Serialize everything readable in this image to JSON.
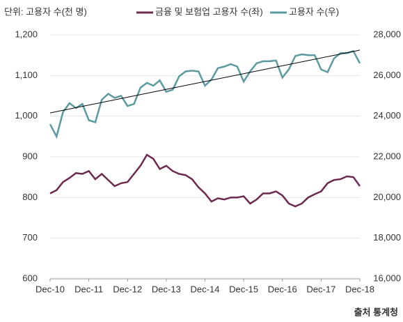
{
  "chart_data": {
    "type": "line",
    "unit_label": "단위: 고용자 수(천 명)",
    "source": "출처 통계청",
    "categories": [
      "Dec-10",
      null,
      null,
      null,
      null,
      null,
      "Dec-11",
      null,
      null,
      null,
      null,
      null,
      "Dec-12",
      null,
      null,
      null,
      null,
      null,
      "Dec-13",
      null,
      null,
      null,
      null,
      null,
      "Dec-14",
      null,
      null,
      null,
      null,
      null,
      "Dec-15",
      null,
      null,
      null,
      null,
      null,
      "Dec-16",
      null,
      null,
      null,
      null,
      null,
      "Dec-17",
      null,
      null,
      null,
      null,
      null,
      "Dec-18"
    ],
    "series": [
      {
        "name": "금융 및 보험업 고용자 수(좌)",
        "color": "#6b2a4e",
        "axis": "y",
        "values": [
          810,
          818,
          838,
          848,
          860,
          858,
          865,
          845,
          858,
          843,
          828,
          835,
          838,
          858,
          878,
          905,
          895,
          870,
          878,
          865,
          858,
          855,
          845,
          825,
          810,
          790,
          798,
          795,
          800,
          800,
          803,
          785,
          795,
          810,
          810,
          815,
          805,
          785,
          778,
          785,
          800,
          808,
          815,
          835,
          843,
          845,
          852,
          850,
          828
        ]
      },
      {
        "name": "고용자 수(우)",
        "color": "#5b9aa0",
        "axis": "y2",
        "values": [
          23600,
          23000,
          24200,
          24640,
          24400,
          24600,
          23800,
          23700,
          24800,
          25100,
          24900,
          25000,
          24500,
          24600,
          25400,
          25640,
          25500,
          25760,
          25200,
          25300,
          25960,
          26200,
          26240,
          26200,
          25500,
          25800,
          26360,
          26440,
          26560,
          26440,
          25700,
          26200,
          26600,
          26700,
          26700,
          26740,
          25900,
          26300,
          26960,
          27040,
          27000,
          27000,
          26300,
          26160,
          26840,
          27100,
          27100,
          27200,
          26600
        ]
      }
    ],
    "trend": {
      "axis": "y2",
      "color": "#000000",
      "values": [
        24160,
        27250
      ]
    },
    "ylim": [
      600,
      1200
    ],
    "yticks": [
      600,
      700,
      800,
      900,
      {
        "value": 1000,
        "label": "1,000"
      },
      {
        "value": 1100,
        "label": "1,100"
      },
      {
        "value": 1200,
        "label": "1,200"
      }
    ],
    "y2lim": [
      16000,
      28000
    ],
    "y2ticks": [
      {
        "value": 16000,
        "label": "16,000"
      },
      {
        "value": 18000,
        "label": "18,000"
      },
      {
        "value": 20000,
        "label": "20,000"
      },
      {
        "value": 22000,
        "label": "22,000"
      },
      {
        "value": 24000,
        "label": "24,000"
      },
      {
        "value": 26000,
        "label": "26,000"
      },
      {
        "value": 28000,
        "label": "28,000"
      }
    ],
    "grid": true
  }
}
